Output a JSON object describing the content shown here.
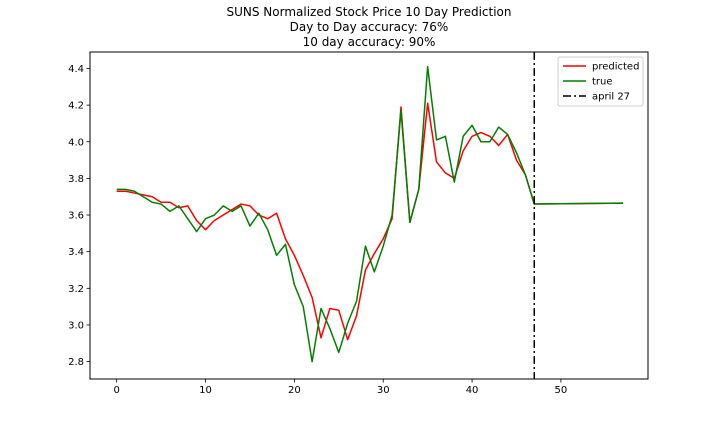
{
  "chart_data": {
    "type": "line",
    "title_lines": [
      "SUNS Normalized Stock Price 10 Day Prediction",
      "Day to Day accuracy: 76%",
      "10 day accuracy: 90%"
    ],
    "xlabel": "",
    "ylabel": "",
    "xlim": [
      -3,
      59.8
    ],
    "ylim": [
      2.705,
      4.49
    ],
    "xticks": [
      0,
      10,
      20,
      30,
      40,
      50
    ],
    "yticks": [
      2.8,
      3.0,
      3.2,
      3.4,
      3.6,
      3.8,
      4.0,
      4.2,
      4.4
    ],
    "grid": false,
    "legend_position": "top-right",
    "series": [
      {
        "name": "predicted",
        "color": "#ff0000",
        "dash": "solid",
        "x": [
          0,
          1,
          2,
          3,
          4,
          5,
          6,
          7,
          8,
          9,
          10,
          11,
          12,
          13,
          14,
          15,
          16,
          17,
          18,
          19,
          20,
          21,
          22,
          23,
          24,
          25,
          26,
          27,
          28,
          29,
          30,
          31,
          32,
          33,
          34,
          35,
          36,
          37,
          38,
          39,
          40,
          41,
          42,
          43,
          44,
          45,
          46,
          47,
          57
        ],
        "y": [
          3.73,
          3.73,
          3.72,
          3.71,
          3.7,
          3.67,
          3.67,
          3.64,
          3.65,
          3.57,
          3.52,
          3.57,
          3.6,
          3.63,
          3.66,
          3.65,
          3.6,
          3.58,
          3.61,
          3.47,
          3.38,
          3.27,
          3.15,
          2.93,
          3.09,
          3.08,
          2.92,
          3.05,
          3.3,
          3.39,
          3.47,
          3.58,
          4.19,
          3.56,
          3.74,
          4.21,
          3.89,
          3.83,
          3.8,
          3.95,
          4.03,
          4.05,
          4.03,
          3.98,
          4.04,
          3.9,
          3.82,
          3.66,
          3.665
        ]
      },
      {
        "name": "true",
        "color": "#008000",
        "dash": "solid",
        "x": [
          0,
          1,
          2,
          3,
          4,
          5,
          6,
          7,
          8,
          9,
          10,
          11,
          12,
          13,
          14,
          15,
          16,
          17,
          18,
          19,
          20,
          21,
          22,
          23,
          24,
          25,
          26,
          27,
          28,
          29,
          30,
          31,
          32,
          33,
          34,
          35,
          36,
          37,
          38,
          39,
          40,
          41,
          42,
          43,
          44,
          45,
          46,
          47,
          57
        ],
        "y": [
          3.74,
          3.74,
          3.73,
          3.7,
          3.67,
          3.66,
          3.62,
          3.65,
          3.58,
          3.51,
          3.58,
          3.6,
          3.65,
          3.62,
          3.65,
          3.54,
          3.61,
          3.52,
          3.38,
          3.44,
          3.22,
          3.1,
          2.8,
          3.09,
          2.98,
          2.85,
          3.01,
          3.13,
          3.43,
          3.29,
          3.43,
          3.6,
          4.17,
          3.56,
          3.74,
          4.41,
          4.01,
          4.03,
          3.78,
          4.03,
          4.09,
          4.0,
          4.0,
          4.08,
          4.04,
          3.94,
          3.82,
          3.66,
          3.665
        ]
      },
      {
        "name": "april 27",
        "color": "#000000",
        "dash": "dashdot",
        "vertical_x": 47
      }
    ]
  }
}
